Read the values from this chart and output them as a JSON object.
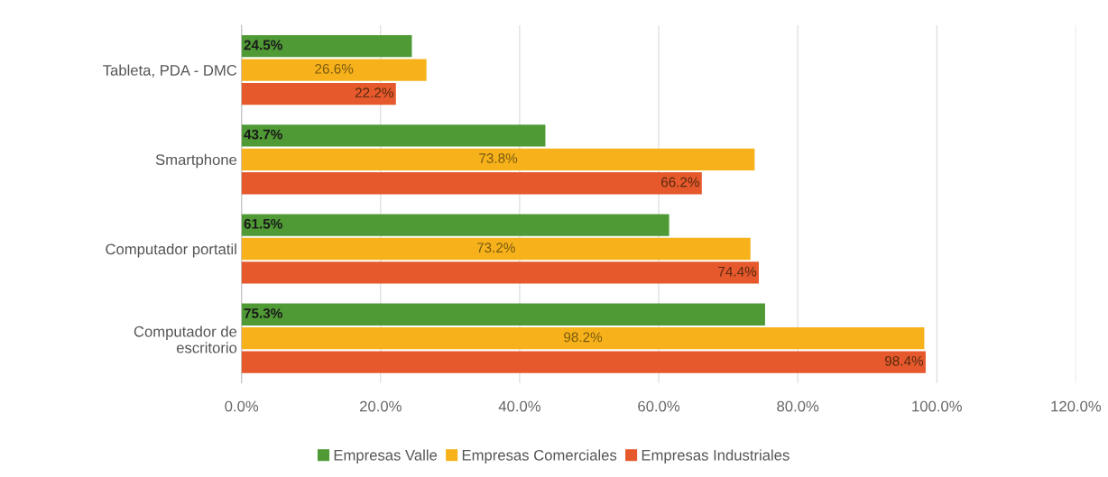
{
  "chart_data": {
    "type": "bar",
    "orientation": "horizontal",
    "categories": [
      "Tableta, PDA - DMC",
      "Smartphone",
      "Computador portatil",
      "Computador de\nescritorio"
    ],
    "series": [
      {
        "name": "Empresas Valle",
        "color": "#4f9a35",
        "values": [
          24.5,
          43.7,
          61.5,
          75.3
        ],
        "value_labels": [
          "24.5%",
          "43.7%",
          "61.5%",
          "75.3%"
        ]
      },
      {
        "name": "Empresas Comerciales",
        "color": "#f7b21b",
        "values": [
          26.6,
          73.8,
          73.2,
          98.2
        ],
        "value_labels": [
          "26.6%",
          "73.8%",
          "73.2%",
          "98.2%"
        ]
      },
      {
        "name": "Empresas Industriales",
        "color": "#e5592c",
        "values": [
          22.2,
          66.2,
          74.4,
          98.4
        ],
        "value_labels": [
          "22.2%",
          "66.2%",
          "74.4%",
          "98.4%"
        ]
      }
    ],
    "xlim": [
      0,
      120
    ],
    "xticks": [
      {
        "value": 0,
        "label": "0.0%"
      },
      {
        "value": 20,
        "label": "20.0%"
      },
      {
        "value": 40,
        "label": "40.0%"
      },
      {
        "value": 60,
        "label": "60.0%"
      },
      {
        "value": 80,
        "label": "80.0%"
      },
      {
        "value": 100,
        "label": "100.0%"
      },
      {
        "value": 120,
        "label": "120.0%"
      }
    ],
    "grid": "x",
    "legend": "bottom"
  }
}
